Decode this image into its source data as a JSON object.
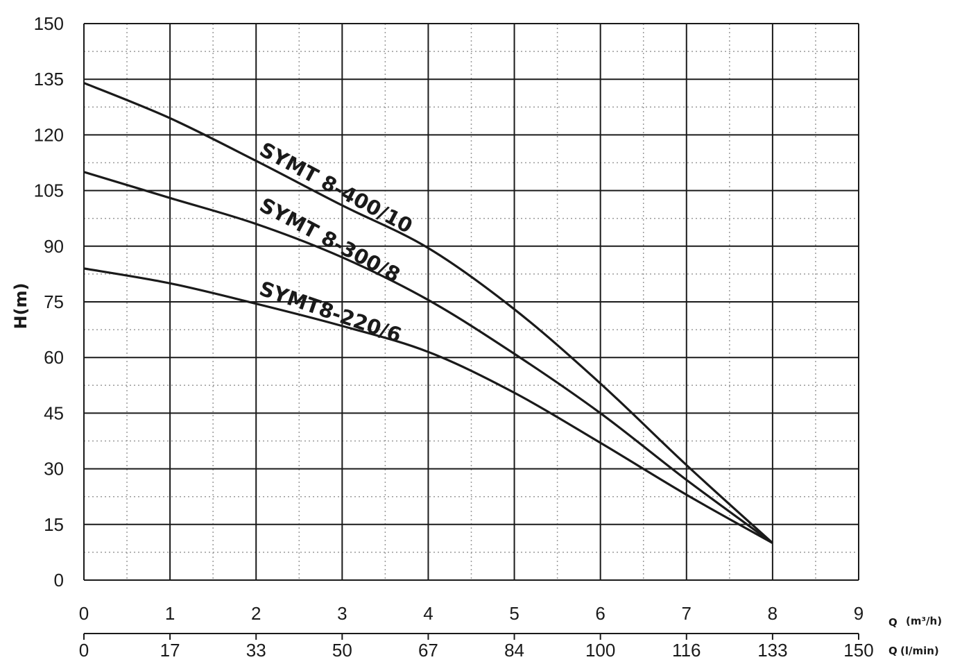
{
  "chart_data": {
    "type": "line",
    "title": "",
    "ylabel": "H(m)",
    "xlabel": "Q",
    "x_unit_label": "(m³/h)",
    "x2_label": "Q",
    "x2_unit_label": "(l/min)",
    "xlim": [
      0,
      9
    ],
    "ylim": [
      0,
      150
    ],
    "grid": "major solid, minor dotted",
    "x_ticks": [
      "0",
      "1",
      "2",
      "3",
      "4",
      "5",
      "6",
      "7",
      "8",
      "9"
    ],
    "x2_ticks": [
      "0",
      "17",
      "33",
      "50",
      "67",
      "84",
      "100",
      "116",
      "133",
      "150"
    ],
    "y_ticks": [
      "0",
      "15",
      "30",
      "45",
      "60",
      "75",
      "90",
      "105",
      "120",
      "135",
      "150"
    ],
    "series": [
      {
        "name": "SYMT 8-400/10",
        "x": [
          0,
          1,
          2,
          3,
          4,
          5,
          6,
          7,
          8
        ],
        "y": [
          134,
          124.5,
          113,
          101,
          89.5,
          73,
          53,
          31,
          10
        ]
      },
      {
        "name": "SYMT 8-300/8",
        "x": [
          0,
          1,
          2,
          3,
          4,
          5,
          6,
          7,
          8
        ],
        "y": [
          110,
          103,
          96,
          87,
          75.5,
          61,
          45,
          27,
          10
        ]
      },
      {
        "name": "SYMT8-220/6",
        "x": [
          0,
          1,
          2,
          3,
          4,
          5,
          6,
          7,
          8
        ],
        "y": [
          84,
          80,
          74.5,
          68.5,
          61.5,
          50.5,
          37,
          23,
          10
        ]
      }
    ]
  }
}
